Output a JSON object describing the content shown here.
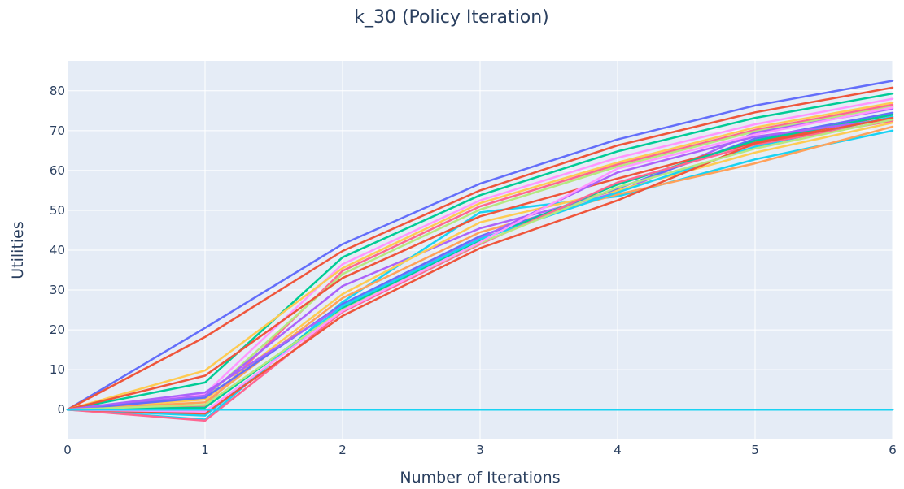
{
  "chart_data": {
    "type": "line",
    "title": "k_30 (Policy Iteration)",
    "xlabel": "Number of Iterations",
    "ylabel": "Utilities",
    "xlim": [
      0,
      6
    ],
    "ylim": [
      -7.5,
      87.5
    ],
    "x_ticks": [
      0,
      1,
      2,
      3,
      4,
      5,
      6
    ],
    "y_ticks": [
      0,
      10,
      20,
      30,
      40,
      50,
      60,
      70,
      80
    ],
    "grid": true,
    "legend": "none",
    "plot_background": "#e5ecf6",
    "x": [
      0,
      1,
      2,
      3,
      4,
      5,
      6
    ],
    "series": [
      {
        "color": "#636efa",
        "values": [
          0,
          20.5,
          41.5,
          56.7,
          67.8,
          76.3,
          82.5
        ]
      },
      {
        "color": "#ef553b",
        "values": [
          0,
          18.2,
          39.8,
          55.0,
          66.3,
          74.6,
          80.8
        ]
      },
      {
        "color": "#00cc96",
        "values": [
          0,
          6.8,
          38.2,
          53.8,
          64.8,
          73.2,
          79.3
        ]
      },
      {
        "color": "#ff97ff",
        "values": [
          0,
          4.0,
          36.5,
          52.5,
          63.2,
          71.6,
          78.0
        ]
      },
      {
        "color": "#fecb52",
        "values": [
          0,
          9.8,
          35.5,
          51.8,
          62.0,
          70.8,
          77.0
        ]
      },
      {
        "color": "#ff6692",
        "values": [
          0,
          1.0,
          34.8,
          51.0,
          61.5,
          70.2,
          76.5
        ]
      },
      {
        "color": "#b6e880",
        "values": [
          0,
          3.0,
          34.0,
          50.2,
          61.0,
          69.8,
          76.0
        ]
      },
      {
        "color": "#ab63fa",
        "values": [
          0,
          3.5,
          31.0,
          45.5,
          54.5,
          69.5,
          75.5
        ]
      },
      {
        "color": "#19d3f3",
        "values": [
          0,
          -2.5,
          27.0,
          49.5,
          53.5,
          62.8,
          70.0
        ]
      },
      {
        "color": "#ef553b",
        "values": [
          0,
          8.5,
          33.0,
          48.5,
          58.0,
          67.0,
          74.0
        ]
      },
      {
        "color": "#fecb52",
        "values": [
          0,
          2.5,
          29.0,
          47.0,
          55.0,
          64.5,
          72.0
        ]
      },
      {
        "color": "#ffa15a",
        "values": [
          0,
          1.8,
          28.0,
          44.5,
          54.0,
          61.8,
          71.0
        ]
      },
      {
        "color": "#636efa",
        "values": [
          0,
          3.0,
          26.5,
          43.5,
          55.5,
          68.0,
          74.5
        ]
      },
      {
        "color": "#00cc96",
        "values": [
          0,
          0.5,
          25.5,
          42.5,
          56.5,
          67.5,
          74.0
        ]
      },
      {
        "color": "#ab63fa",
        "values": [
          0,
          4.3,
          26.0,
          43.0,
          59.5,
          68.5,
          73.0
        ]
      },
      {
        "color": "#19d3f3",
        "values": [
          0,
          -1.5,
          26.0,
          42.8,
          54.5,
          66.0,
          73.5
        ]
      },
      {
        "color": "#ff6692",
        "values": [
          0,
          -2.8,
          24.5,
          41.5,
          57.0,
          66.5,
          72.5
        ]
      },
      {
        "color": "#ef553b",
        "values": [
          0,
          -1.0,
          23.5,
          40.5,
          52.5,
          66.8,
          73.2
        ]
      },
      {
        "color": "#b6e880",
        "values": [
          0,
          1.2,
          25.0,
          41.8,
          55.8,
          65.5,
          72.8
        ]
      },
      {
        "color": "#ff97ff",
        "values": [
          0,
          -0.5,
          24.8,
          42.0,
          60.5,
          69.0,
          75.8
        ]
      },
      {
        "color": "#00cc96",
        "values": [
          0,
          0,
          0,
          0,
          0,
          0,
          0
        ]
      },
      {
        "color": "#ab63fa",
        "values": [
          0,
          0,
          0,
          0,
          0,
          0,
          0
        ]
      },
      {
        "color": "#19d3f3",
        "values": [
          0,
          0,
          0,
          0,
          0,
          0,
          0
        ]
      }
    ]
  }
}
